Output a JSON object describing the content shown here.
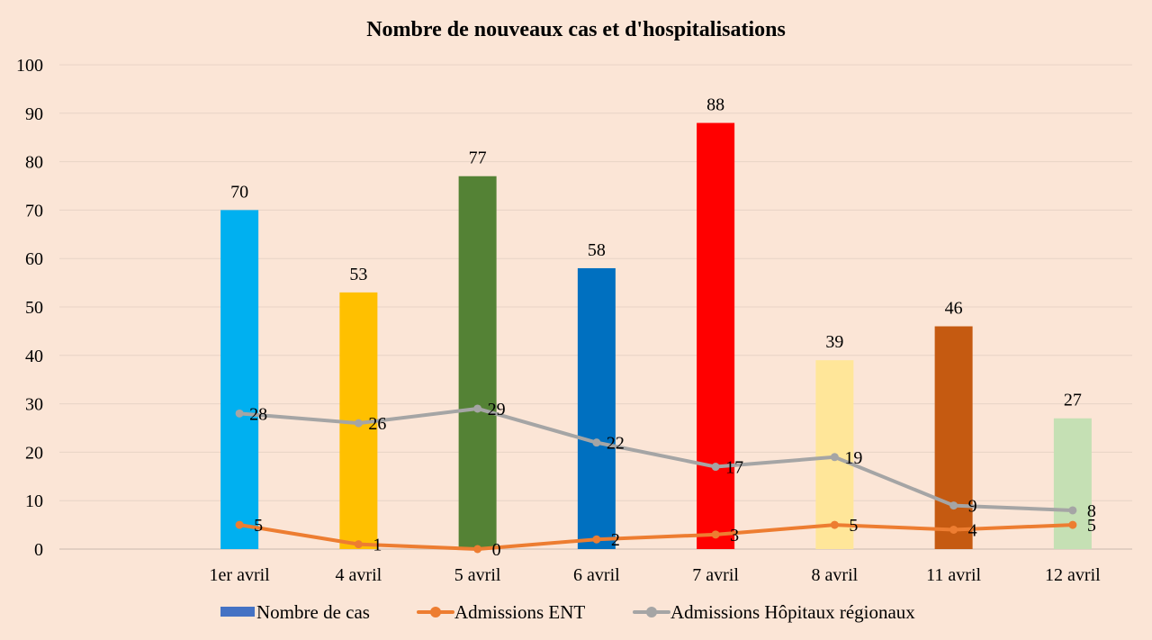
{
  "chart_data": {
    "type": "bar",
    "title": "Nombre de nouveaux cas et d'hospitalisations",
    "categories": [
      "1er avril",
      "4 avril",
      "5 avril",
      "6 avril",
      "7 avril",
      "8 avril",
      "11 avril",
      "12 avril"
    ],
    "ylim": [
      0,
      100
    ],
    "yticks": [
      0,
      10,
      20,
      30,
      40,
      50,
      60,
      70,
      80,
      90,
      100
    ],
    "grid": true,
    "legend_position": "bottom",
    "series": [
      {
        "name": "Nombre de cas",
        "type": "bar",
        "values": [
          70,
          53,
          77,
          58,
          88,
          39,
          46,
          27
        ],
        "color": "#4472c4",
        "bar_colors": [
          "#00b0f0",
          "#ffc000",
          "#548235",
          "#0070c0",
          "#ff0000",
          "#ffe699",
          "#c55a11",
          "#c5e0b4"
        ]
      },
      {
        "name": "Admissions ENT",
        "type": "line",
        "values": [
          5,
          1,
          0,
          2,
          3,
          5,
          4,
          5
        ],
        "color": "#ed7d31"
      },
      {
        "name": "Admissions Hôpitaux régionaux",
        "type": "line",
        "values": [
          28,
          26,
          29,
          22,
          17,
          19,
          9,
          8
        ],
        "color": "#a5a5a5"
      }
    ]
  }
}
